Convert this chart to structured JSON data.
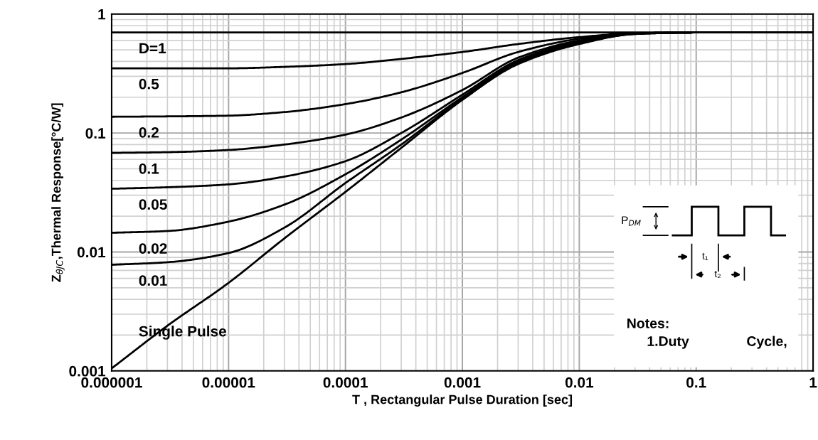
{
  "chart_data": {
    "type": "line",
    "xlabel": "T , Rectangular Pulse Duration [sec]",
    "ylabel": "Z$_{θJC}$,Thermal Response[°C/W]",
    "log": "xy",
    "grid": true,
    "line_style": "solid",
    "xlim": [
      1e-06,
      1
    ],
    "ylim": [
      0.001,
      1
    ],
    "xticks": [
      {
        "value": 1e-06,
        "label": "0.000001"
      },
      {
        "value": 1e-05,
        "label": "0.00001"
      },
      0.0001,
      0.001,
      0.01,
      0.1,
      1
    ],
    "yticks": [
      0.001,
      0.01,
      0.1,
      1
    ],
    "x": [
      1e-06,
      3e-06,
      1e-05,
      3e-05,
      0.0001,
      0.0003,
      0.001,
      0.003,
      0.01,
      0.03,
      0.1,
      1
    ],
    "series": [
      {
        "name": "D=1",
        "color": "#000000",
        "values": [
          0.7,
          0.7,
          0.7,
          0.7,
          0.7,
          0.7,
          0.7,
          0.7,
          0.7,
          0.7,
          0.7,
          0.7
        ]
      },
      {
        "name": "0.5",
        "color": "#000000",
        "values": [
          0.35,
          0.35,
          0.35,
          0.36,
          0.38,
          0.42,
          0.48,
          0.56,
          0.64,
          0.69,
          0.7,
          0.7
        ]
      },
      {
        "name": "0.2",
        "color": "#000000",
        "values": [
          0.137,
          0.138,
          0.14,
          0.15,
          0.175,
          0.22,
          0.32,
          0.48,
          0.62,
          0.69,
          0.7,
          0.7
        ]
      },
      {
        "name": "0.1",
        "color": "#000000",
        "values": [
          0.068,
          0.069,
          0.072,
          0.08,
          0.097,
          0.135,
          0.23,
          0.43,
          0.6,
          0.69,
          0.7,
          0.7
        ]
      },
      {
        "name": "0.05",
        "color": "#000000",
        "values": [
          0.034,
          0.035,
          0.037,
          0.043,
          0.058,
          0.1,
          0.21,
          0.41,
          0.59,
          0.69,
          0.7,
          0.7
        ]
      },
      {
        "name": "0.02",
        "color": "#000000",
        "values": [
          0.0145,
          0.015,
          0.018,
          0.025,
          0.045,
          0.088,
          0.2,
          0.4,
          0.58,
          0.69,
          0.7,
          0.7
        ]
      },
      {
        "name": "0.01",
        "color": "#000000",
        "values": [
          0.0078,
          0.0082,
          0.0098,
          0.016,
          0.038,
          0.08,
          0.195,
          0.39,
          0.57,
          0.68,
          0.7,
          0.7
        ]
      },
      {
        "name": "Single Pulse",
        "color": "#000000",
        "values": [
          0.00105,
          0.0024,
          0.0055,
          0.013,
          0.032,
          0.075,
          0.19,
          0.38,
          0.56,
          0.68,
          0.7,
          0.7
        ]
      }
    ],
    "annotations": [
      "P$_{DM}$",
      "t₁",
      "t₂",
      "Notes:",
      "1.Duty",
      "Cycle,"
    ]
  }
}
